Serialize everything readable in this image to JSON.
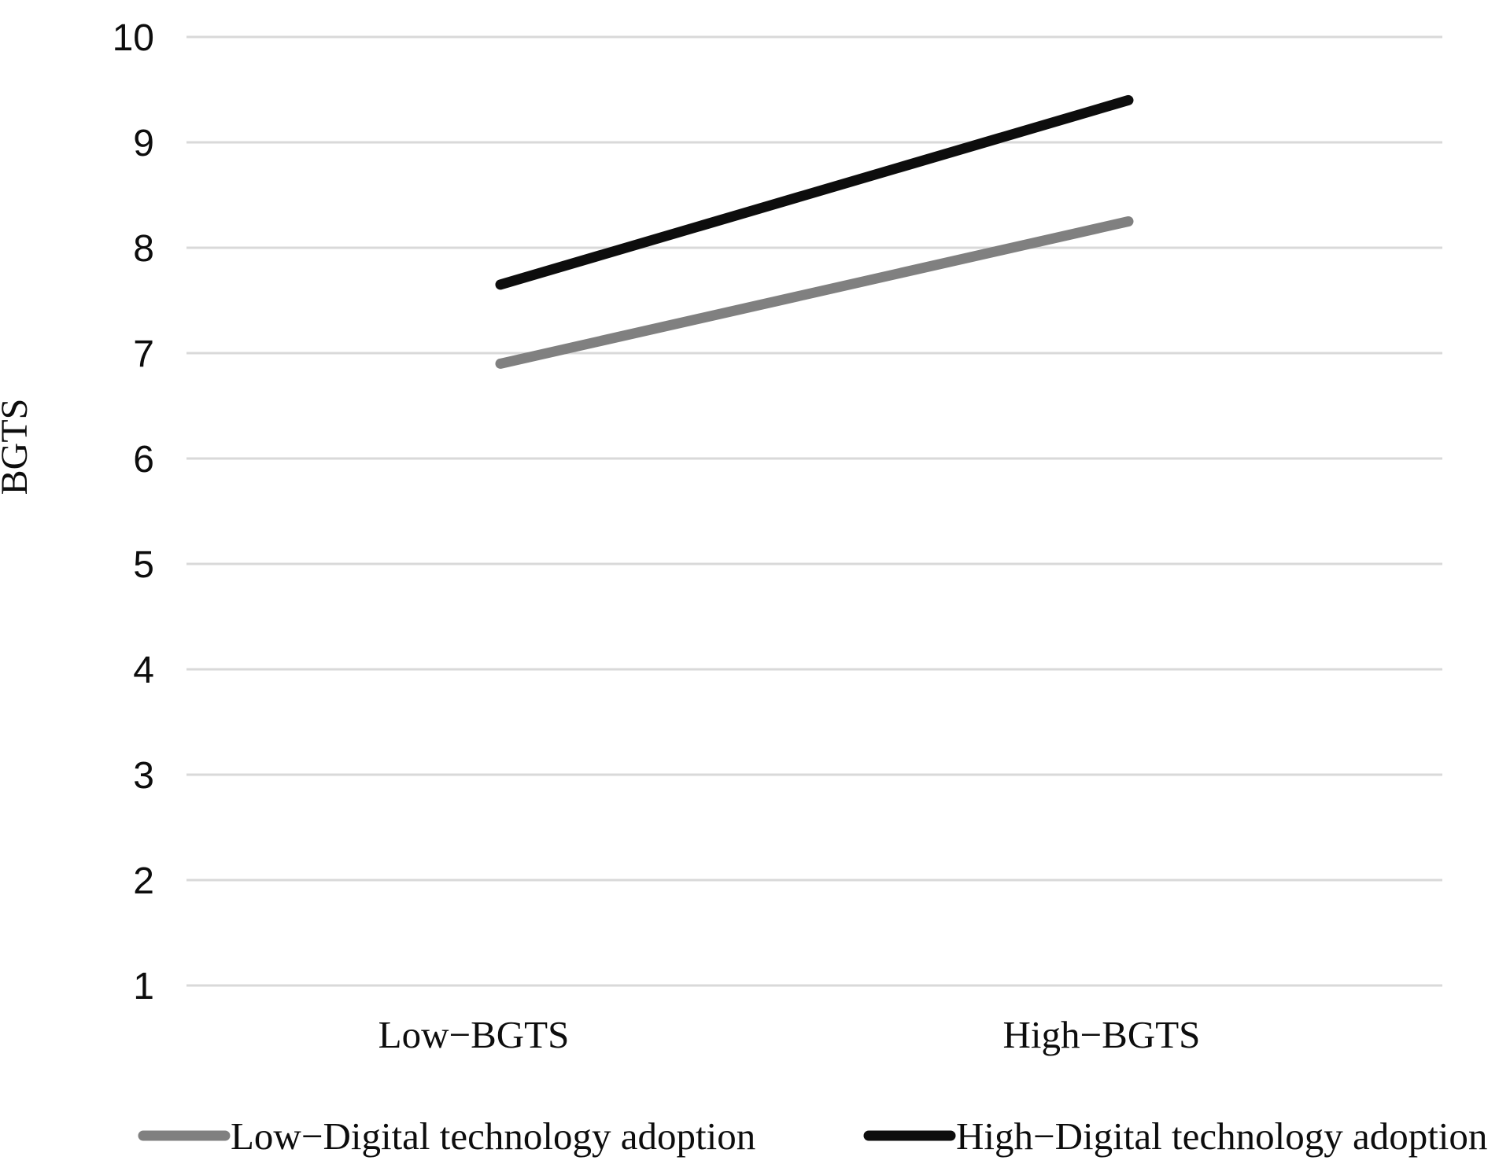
{
  "figure": {
    "background_color": "#ffffff",
    "text_color": "#0d0d0d",
    "gridline_color": "#d9d9d9"
  },
  "chart_data": {
    "type": "line",
    "title": "",
    "xlabel": "",
    "ylabel": "BGTS",
    "categories": [
      "Low−BGTS",
      "High−BGTS"
    ],
    "series": [
      {
        "name": "Low−Digital technology adoption",
        "values": [
          6.9,
          8.25
        ],
        "color": "#808080"
      },
      {
        "name": "High−Digital technology adoption",
        "values": [
          7.65,
          9.4
        ],
        "color": "#0d0d0d"
      }
    ],
    "ylim": [
      1,
      10
    ],
    "yticks": [
      1,
      2,
      3,
      4,
      5,
      6,
      7,
      8,
      9,
      10
    ],
    "grid": true,
    "legend_position": "bottom"
  }
}
